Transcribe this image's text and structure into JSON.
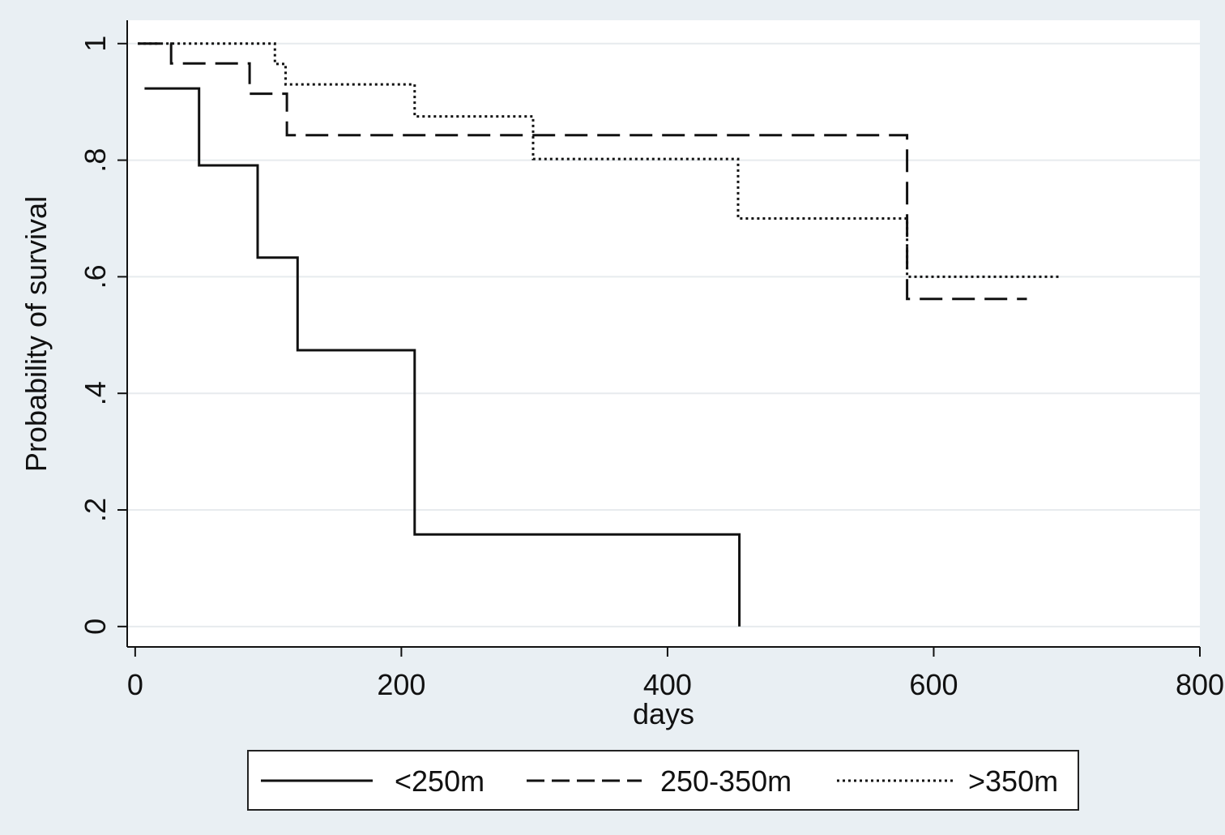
{
  "chart_data": {
    "type": "line",
    "title": "",
    "xlabel": "days",
    "ylabel": "Probability of survival",
    "xlim": [
      -6,
      800
    ],
    "ylim": [
      -0.035,
      1.04
    ],
    "x_ticks": [
      0,
      200,
      400,
      600,
      800
    ],
    "x_tick_labels": [
      "0",
      "200",
      "400",
      "600",
      "800"
    ],
    "y_ticks": [
      0,
      0.2,
      0.4,
      0.6,
      0.8,
      1
    ],
    "y_tick_labels": [
      "0",
      ".2",
      ".4",
      ".6",
      ".8",
      "1"
    ],
    "grid": true,
    "legend_position": "bottom",
    "series": [
      {
        "name": "<250m",
        "style": "solid",
        "x": [
          7,
          48,
          48,
          92,
          92,
          122,
          122,
          210,
          210,
          454,
          454
        ],
        "y": [
          0.923,
          0.923,
          0.791,
          0.791,
          0.633,
          0.633,
          0.474,
          0.474,
          0.158,
          0.158,
          0
        ]
      },
      {
        "name": "250-350m",
        "style": "dashed",
        "x": [
          2,
          27,
          27,
          86,
          86,
          114,
          114,
          580,
          580,
          670
        ],
        "y": [
          1,
          1,
          0.966,
          0.966,
          0.914,
          0.914,
          0.843,
          0.843,
          0.562,
          0.562
        ]
      },
      {
        "name": ">350m",
        "style": "dotted",
        "x": [
          2,
          105,
          105,
          113,
          113,
          210,
          210,
          299,
          299,
          453,
          453,
          580,
          580,
          695
        ],
        "y": [
          1,
          1,
          0.965,
          0.965,
          0.93,
          0.93,
          0.875,
          0.875,
          0.802,
          0.802,
          0.7,
          0.7,
          0.6,
          0.6
        ]
      }
    ]
  }
}
